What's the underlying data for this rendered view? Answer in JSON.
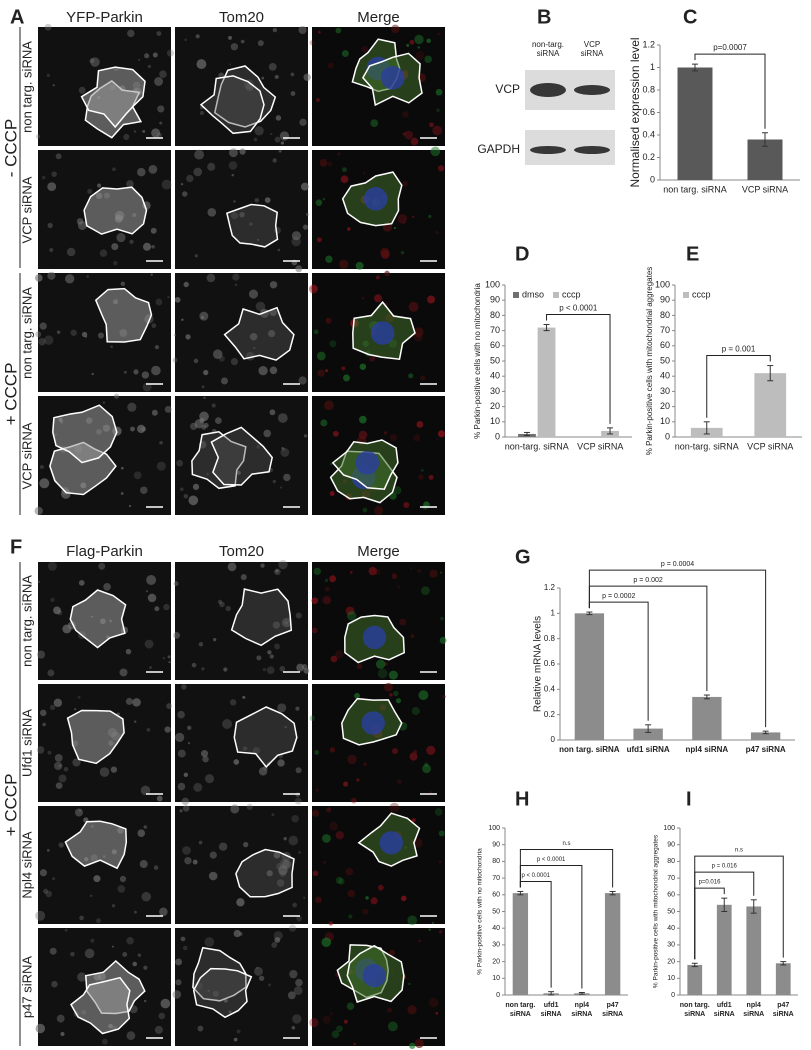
{
  "labels": [
    "A",
    "B",
    "C",
    "D",
    "E",
    "F",
    "G",
    "H",
    "I"
  ],
  "panel_a": {
    "columns": [
      "YFP-Parkin",
      "Tom20",
      "Merge"
    ],
    "rows": [
      "non targ. siRNA",
      "VCP siRNA",
      "non targ. siRNA",
      "VCP siRNA"
    ],
    "conditions": [
      "- CCCP",
      "+ CCCP"
    ]
  },
  "panel_b": {
    "lanes": [
      "non-targ. siRNA",
      "VCP siRNA"
    ],
    "bands": [
      "VCP",
      "GAPDH"
    ]
  },
  "panel_f": {
    "columns": [
      "Flag-Parkin",
      "Tom20",
      "Merge"
    ],
    "rows": [
      "non targ. siRNA",
      "Ufd1 siRNA",
      "Npl4 siRNA",
      "p47 siRNA"
    ],
    "condition": "+ CCCP"
  },
  "chart_data": [
    {
      "type": "bar",
      "ylabel": "Normalised expression level",
      "categories": [
        "non targ. siRNA",
        "VCP siRNA"
      ],
      "series": [
        {
          "color": "#595959",
          "values": [
            1,
            0.36
          ],
          "errors": [
            0.03,
            0.06
          ]
        }
      ],
      "ylim": [
        0,
        1.2
      ],
      "yticks": [
        0,
        0.2,
        0.4,
        0.6,
        0.8,
        1,
        1.2
      ],
      "annotations": [
        {
          "text": "p=0.0007",
          "pair": [
            0,
            1
          ]
        }
      ]
    },
    {
      "type": "bar",
      "ylabel": "% Parkin-positive cells with no mitochondria",
      "categories": [
        "non-targ. siRNA",
        "VCP siRNA"
      ],
      "series": [
        {
          "name": "dmso",
          "color": "#707070",
          "values": [
            2,
            0
          ],
          "errors": [
            1,
            0
          ]
        },
        {
          "name": "cccp",
          "color": "#bdbdbd",
          "values": [
            72,
            4
          ],
          "errors": [
            2,
            2
          ]
        }
      ],
      "ylim": [
        0,
        100
      ],
      "yticks": [
        0,
        10,
        20,
        30,
        40,
        50,
        60,
        70,
        80,
        90,
        100
      ],
      "legend": "top-left",
      "annotations": [
        {
          "text": "p < 0.0001",
          "pair": [
            0,
            1
          ],
          "series": 1
        }
      ]
    },
    {
      "type": "bar",
      "ylabel": "% Parkin-positive cells with mitochondrial aggregates",
      "categories": [
        "non-targ. siRNA",
        "VCP siRNA"
      ],
      "series": [
        {
          "name": "cccp",
          "color": "#bdbdbd",
          "values": [
            6,
            42
          ],
          "errors": [
            4,
            5
          ]
        }
      ],
      "ylim": [
        0,
        100
      ],
      "yticks": [
        0,
        10,
        20,
        30,
        40,
        50,
        60,
        70,
        80,
        90,
        100
      ],
      "legend": "top-left",
      "annotations": [
        {
          "text": "p = 0.001",
          "pair": [
            0,
            1
          ]
        }
      ]
    },
    {
      "type": "bar",
      "ylabel": "Relative mRNA levels",
      "categories": [
        "non targ. siRNA",
        "ufd1 siRNA",
        "npl4 siRNA",
        "p47 siRNA"
      ],
      "series": [
        {
          "color": "#8c8c8c",
          "values": [
            1,
            0.09,
            0.34,
            0.06
          ],
          "errors": [
            0.01,
            0.03,
            0.015,
            0.01
          ]
        }
      ],
      "ylim": [
        0,
        1.2
      ],
      "yticks": [
        0,
        0.2,
        0.4,
        0.6,
        0.8,
        1,
        1.2
      ],
      "annotations": [
        {
          "text": "p = 0.0002",
          "pair": [
            0,
            1
          ]
        },
        {
          "text": "p = 0.002",
          "pair": [
            0,
            2
          ]
        },
        {
          "text": "p = 0.0004",
          "pair": [
            0,
            3
          ]
        }
      ]
    },
    {
      "type": "bar",
      "ylabel": "% Parkin-positive cells with no mitochondria",
      "categories": [
        "non targ. siRNA",
        "ufd1 siRNA",
        "npl4 siRNA",
        "p47 siRNA"
      ],
      "series": [
        {
          "color": "#8c8c8c",
          "values": [
            61,
            1,
            1,
            61
          ],
          "errors": [
            1,
            1,
            0.5,
            1
          ]
        }
      ],
      "ylim": [
        0,
        100
      ],
      "yticks": [
        0,
        10,
        20,
        30,
        40,
        50,
        60,
        70,
        80,
        90,
        100
      ],
      "annotations": [
        {
          "text": "p < 0.0001",
          "pair": [
            0,
            1
          ]
        },
        {
          "text": "p < 0.0001",
          "pair": [
            0,
            2
          ]
        },
        {
          "text": "n.s",
          "pair": [
            0,
            3
          ]
        }
      ]
    },
    {
      "type": "bar",
      "ylabel": "% Parkin-positive cells with mitochondrial aggregates",
      "categories": [
        "non targ. siRNA",
        "ufd1 siRNA",
        "npl4 siRNA",
        "p47 siRNA"
      ],
      "series": [
        {
          "color": "#8c8c8c",
          "values": [
            18,
            54,
            53,
            19
          ],
          "errors": [
            1,
            4,
            4,
            1
          ]
        }
      ],
      "ylim": [
        0,
        100
      ],
      "yticks": [
        0,
        10,
        20,
        30,
        40,
        50,
        60,
        70,
        80,
        90,
        100
      ],
      "annotations": [
        {
          "text": "p=0.016",
          "pair": [
            0,
            1
          ]
        },
        {
          "text": "p = 0.016",
          "pair": [
            0,
            2
          ]
        },
        {
          "text": "n.s",
          "pair": [
            0,
            3
          ]
        }
      ]
    }
  ]
}
